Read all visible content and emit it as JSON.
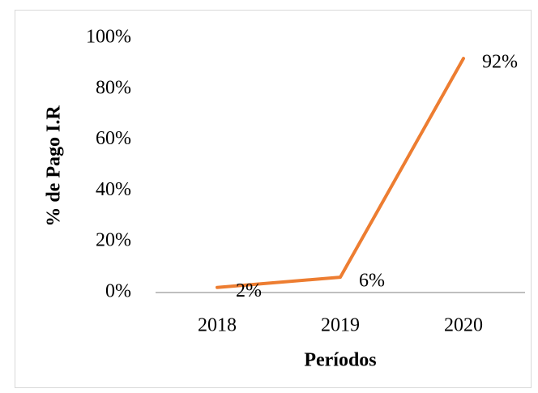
{
  "chart_data": {
    "type": "line",
    "xlabel": "Períodos",
    "ylabel": "% de Pago I.R",
    "categories": [
      "2018",
      "2019",
      "2020"
    ],
    "values": [
      2,
      6,
      92
    ],
    "value_labels": [
      "2%",
      "6%",
      "92%"
    ],
    "color": "#ed7d31",
    "ylim": [
      0,
      100
    ],
    "yticks": [
      {
        "value": 0,
        "label": "0%"
      },
      {
        "value": 20,
        "label": "20%"
      },
      {
        "value": 40,
        "label": "40%"
      },
      {
        "value": 60,
        "label": "60%"
      },
      {
        "value": 80,
        "label": "80%"
      },
      {
        "value": 100,
        "label": "100%"
      }
    ],
    "grid": false
  }
}
